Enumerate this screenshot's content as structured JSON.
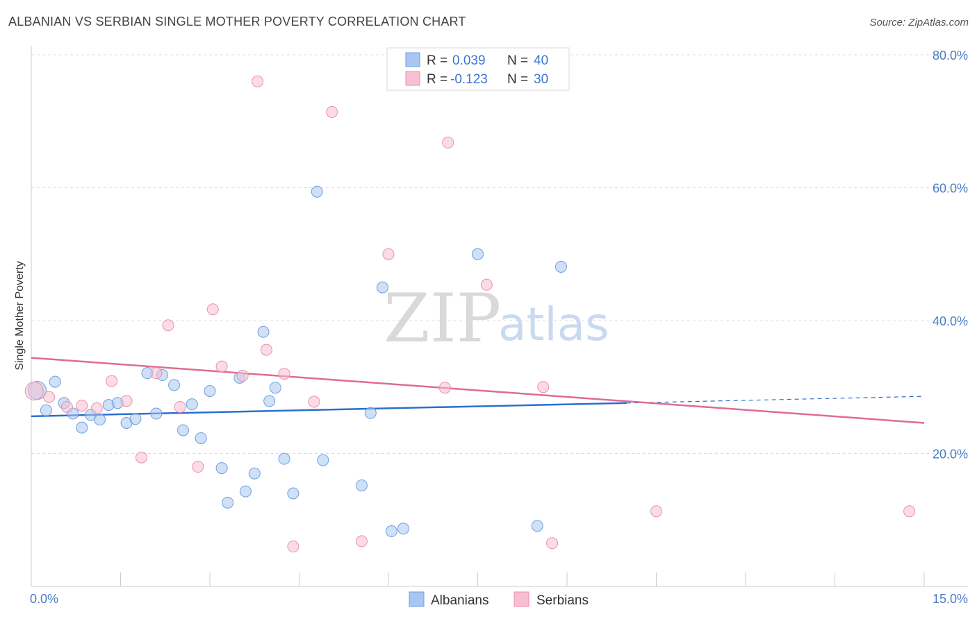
{
  "header": {
    "title": "ALBANIAN VS SERBIAN SINGLE MOTHER POVERTY CORRELATION CHART",
    "source": "Source: ZipAtlas.com"
  },
  "watermark": {
    "zip": "ZIP",
    "atlas": "atlas"
  },
  "legend": {
    "r_label": "R =",
    "n_label": "N =",
    "rows": [
      {
        "r": "0.039",
        "n": "40",
        "color": "#a8c6f0",
        "stroke": "#6f9fe0"
      },
      {
        "r": "-0.123",
        "n": "30",
        "color": "#f7bfd0",
        "stroke": "#ec8fae"
      }
    ]
  },
  "bottom_legend": [
    {
      "label": "Albanians",
      "color": "#a8c6f0",
      "stroke": "#6f9fe0"
    },
    {
      "label": "Serbians",
      "color": "#f7bfd0",
      "stroke": "#ec8fae"
    }
  ],
  "chart_data": {
    "type": "scatter",
    "title": "ALBANIAN VS SERBIAN SINGLE MOTHER POVERTY CORRELATION CHART",
    "xlabel": "",
    "ylabel": "Single Mother Poverty",
    "xlim": [
      0,
      15
    ],
    "ylim": [
      0,
      80
    ],
    "grid": true,
    "y_ticks": [
      {
        "value": 20,
        "label": "20.0%"
      },
      {
        "value": 40,
        "label": "40.0%"
      },
      {
        "value": 60,
        "label": "60.0%"
      },
      {
        "value": 80,
        "label": "80.0%"
      }
    ],
    "x_tick_labels": [
      {
        "value": 0,
        "label": "0.0%"
      },
      {
        "value": 15,
        "label": "15.0%"
      }
    ],
    "series": [
      {
        "name": "Albanians",
        "color": "#6f9fe0",
        "fill": "#a8c6f0",
        "line_color": "#2a6fd0",
        "trend": {
          "x0": 0,
          "y0": 25.6,
          "x1": 10,
          "y1": 27.6,
          "dash_x1": 15,
          "dash_y1": 28.6
        },
        "points": [
          [
            0.1,
            29.5
          ],
          [
            0.25,
            26.5
          ],
          [
            0.4,
            30.8
          ],
          [
            0.55,
            27.6
          ],
          [
            0.7,
            26.0
          ],
          [
            0.85,
            23.9
          ],
          [
            1.0,
            25.8
          ],
          [
            1.15,
            25.1
          ],
          [
            1.3,
            27.3
          ],
          [
            1.45,
            27.6
          ],
          [
            1.6,
            24.6
          ],
          [
            1.75,
            25.2
          ],
          [
            1.95,
            32.1
          ],
          [
            2.1,
            26.0
          ],
          [
            2.2,
            31.8
          ],
          [
            2.4,
            30.3
          ],
          [
            2.55,
            23.5
          ],
          [
            2.7,
            27.4
          ],
          [
            2.85,
            22.3
          ],
          [
            3.0,
            29.4
          ],
          [
            3.2,
            17.8
          ],
          [
            3.3,
            12.6
          ],
          [
            3.5,
            31.4
          ],
          [
            3.6,
            14.3
          ],
          [
            3.75,
            17.0
          ],
          [
            3.9,
            38.3
          ],
          [
            4.0,
            27.9
          ],
          [
            4.1,
            29.9
          ],
          [
            4.25,
            19.2
          ],
          [
            4.4,
            14.0
          ],
          [
            4.8,
            59.4
          ],
          [
            4.9,
            19.0
          ],
          [
            5.55,
            15.2
          ],
          [
            5.7,
            26.1
          ],
          [
            5.9,
            45.0
          ],
          [
            6.05,
            8.3
          ],
          [
            6.25,
            8.7
          ],
          [
            7.5,
            50.0
          ],
          [
            8.5,
            9.1
          ],
          [
            8.9,
            48.1
          ]
        ]
      },
      {
        "name": "Serbians",
        "color": "#ec8fae",
        "fill": "#f7bfd0",
        "line_color": "#e06b94",
        "trend": {
          "x0": 0,
          "y0": 34.4,
          "x1": 15,
          "y1": 24.6
        },
        "points": [
          [
            0.05,
            29.4
          ],
          [
            0.3,
            28.5
          ],
          [
            0.6,
            27.0
          ],
          [
            0.85,
            27.2
          ],
          [
            1.1,
            26.8
          ],
          [
            1.35,
            30.9
          ],
          [
            1.6,
            27.9
          ],
          [
            1.85,
            19.4
          ],
          [
            2.1,
            32.1
          ],
          [
            2.3,
            39.3
          ],
          [
            2.5,
            27.0
          ],
          [
            2.8,
            18.0
          ],
          [
            3.05,
            41.7
          ],
          [
            3.2,
            33.1
          ],
          [
            3.55,
            31.7
          ],
          [
            3.8,
            76.0
          ],
          [
            3.95,
            35.6
          ],
          [
            4.25,
            32.0
          ],
          [
            4.4,
            6.0
          ],
          [
            4.75,
            27.8
          ],
          [
            5.05,
            71.4
          ],
          [
            5.55,
            6.8
          ],
          [
            6.0,
            50.0
          ],
          [
            6.95,
            29.9
          ],
          [
            7.0,
            66.8
          ],
          [
            7.65,
            45.4
          ],
          [
            8.6,
            30.0
          ],
          [
            8.75,
            6.5
          ],
          [
            10.5,
            11.3
          ],
          [
            14.75,
            11.3
          ]
        ]
      }
    ]
  }
}
